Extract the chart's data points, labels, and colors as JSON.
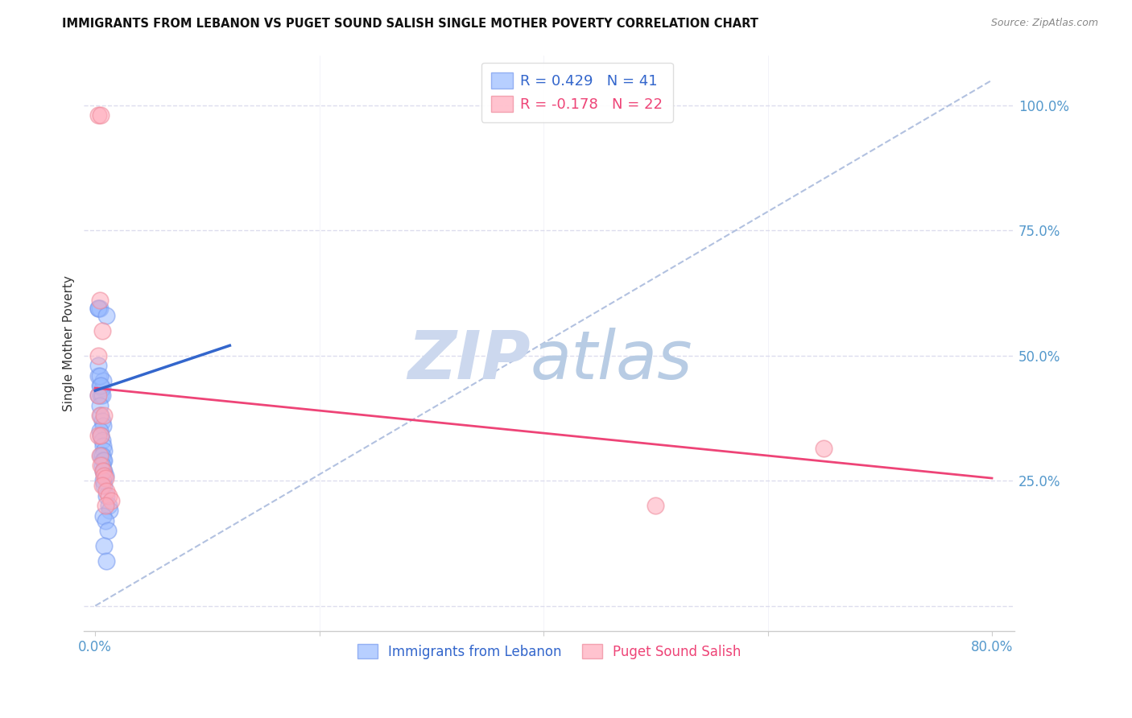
{
  "title": "IMMIGRANTS FROM LEBANON VS PUGET SOUND SALISH SINGLE MOTHER POVERTY CORRELATION CHART",
  "source": "Source: ZipAtlas.com",
  "ylabel": "Single Mother Poverty",
  "blue_color": "#99bbff",
  "blue_edge_color": "#7799ee",
  "pink_color": "#ffaabb",
  "pink_edge_color": "#ee8899",
  "blue_line_color": "#3366cc",
  "pink_line_color": "#ee4477",
  "gray_dash_color": "#aabbdd",
  "legend_blue_label": "R = 0.429   N = 41",
  "legend_pink_label": "R = -0.178   N = 22",
  "legend_blue_series": "Immigrants from Lebanon",
  "legend_pink_series": "Puget Sound Salish",
  "watermark_zip": "ZIP",
  "watermark_atlas": "atlas",
  "watermark_color": "#ccd8ee",
  "background_color": "#ffffff",
  "grid_color": "#ddddee",
  "blue_points": [
    [
      0.003,
      0.595
    ],
    [
      0.004,
      0.595
    ],
    [
      0.003,
      0.595
    ],
    [
      0.01,
      0.58
    ],
    [
      0.003,
      0.42
    ],
    [
      0.004,
      0.44
    ],
    [
      0.006,
      0.435
    ],
    [
      0.003,
      0.46
    ],
    [
      0.005,
      0.42
    ],
    [
      0.007,
      0.45
    ],
    [
      0.003,
      0.48
    ],
    [
      0.004,
      0.46
    ],
    [
      0.005,
      0.44
    ],
    [
      0.006,
      0.42
    ],
    [
      0.004,
      0.4
    ],
    [
      0.005,
      0.38
    ],
    [
      0.006,
      0.37
    ],
    [
      0.007,
      0.36
    ],
    [
      0.004,
      0.35
    ],
    [
      0.005,
      0.34
    ],
    [
      0.006,
      0.33
    ],
    [
      0.007,
      0.32
    ],
    [
      0.008,
      0.31
    ],
    [
      0.005,
      0.3
    ],
    [
      0.006,
      0.3
    ],
    [
      0.007,
      0.29
    ],
    [
      0.008,
      0.29
    ],
    [
      0.006,
      0.28
    ],
    [
      0.007,
      0.27
    ],
    [
      0.008,
      0.27
    ],
    [
      0.009,
      0.26
    ],
    [
      0.007,
      0.25
    ],
    [
      0.008,
      0.24
    ],
    [
      0.01,
      0.22
    ],
    [
      0.012,
      0.2
    ],
    [
      0.013,
      0.19
    ],
    [
      0.007,
      0.18
    ],
    [
      0.009,
      0.17
    ],
    [
      0.011,
      0.15
    ],
    [
      0.008,
      0.12
    ],
    [
      0.01,
      0.09
    ]
  ],
  "pink_points": [
    [
      0.003,
      0.98
    ],
    [
      0.005,
      0.98
    ],
    [
      0.004,
      0.61
    ],
    [
      0.006,
      0.55
    ],
    [
      0.003,
      0.5
    ],
    [
      0.003,
      0.42
    ],
    [
      0.004,
      0.38
    ],
    [
      0.008,
      0.38
    ],
    [
      0.003,
      0.34
    ],
    [
      0.005,
      0.34
    ],
    [
      0.004,
      0.3
    ],
    [
      0.005,
      0.28
    ],
    [
      0.007,
      0.27
    ],
    [
      0.008,
      0.26
    ],
    [
      0.009,
      0.255
    ],
    [
      0.006,
      0.24
    ],
    [
      0.01,
      0.23
    ],
    [
      0.012,
      0.22
    ],
    [
      0.014,
      0.21
    ],
    [
      0.009,
      0.2
    ],
    [
      0.5,
      0.2
    ],
    [
      0.65,
      0.315
    ]
  ],
  "xlim": [
    -0.01,
    0.82
  ],
  "ylim": [
    -0.05,
    1.1
  ],
  "x_tick_positions": [
    0.0,
    0.2,
    0.4,
    0.6,
    0.8
  ],
  "x_tick_labels": [
    "0.0%",
    "",
    "",
    "",
    "80.0%"
  ],
  "y_tick_positions": [
    0.0,
    0.25,
    0.5,
    0.75,
    1.0
  ],
  "y_tick_labels": [
    "",
    "25.0%",
    "50.0%",
    "75.0%",
    "100.0%"
  ],
  "blue_line_x": [
    0.0,
    0.12
  ],
  "blue_line_y": [
    0.43,
    0.52
  ],
  "pink_line_x": [
    0.0,
    0.8
  ],
  "pink_line_y": [
    0.435,
    0.255
  ],
  "ref_line_x": [
    0.0,
    0.8
  ],
  "ref_line_y": [
    0.0,
    1.05
  ]
}
